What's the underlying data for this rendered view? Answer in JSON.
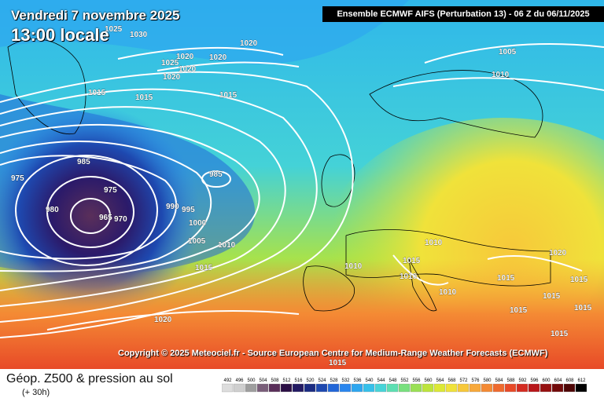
{
  "header": {
    "date_line": "Vendredi 7 novembre 2025",
    "time_line": "13:00 locale",
    "model_line": "Ensemble ECMWF AIFS  (Perturbation 13)  -  06 Z du 06/11/2025"
  },
  "copyright": "Copyright © 2025 Meteociel.fr - Source European Centre for Medium-Range Weather Forecasts (ECMWF)",
  "footer": {
    "title": "Géop. Z500 & pression au sol",
    "subtitle": "(+ 30h)"
  },
  "colorscale": {
    "labels": [
      "492",
      "496",
      "500",
      "504",
      "508",
      "512",
      "516",
      "520",
      "524",
      "528",
      "532",
      "536",
      "540",
      "544",
      "548",
      "552",
      "556",
      "560",
      "564",
      "568",
      "572",
      "576",
      "580",
      "584",
      "588",
      "592",
      "596",
      "600",
      "604",
      "608",
      "612"
    ],
    "colors": [
      "#dddddd",
      "#cfcfcf",
      "#9e9e9e",
      "#7a5f7a",
      "#5a2f5a",
      "#2b0f45",
      "#231a62",
      "#1b2c82",
      "#1e49b0",
      "#2266d8",
      "#2a86ee",
      "#2ea6ef",
      "#35c0ea",
      "#47d4d8",
      "#5ddfb2",
      "#78e07e",
      "#9ae055",
      "#bde43c",
      "#dce836",
      "#f0e23a",
      "#f7c83a",
      "#f7a83a",
      "#f48a34",
      "#ef6a2e",
      "#e84a28",
      "#d42c22",
      "#b8161a",
      "#961010",
      "#720a0a",
      "#4e0505",
      "#000000"
    ]
  },
  "isobar_labels": [
    "1030",
    "1025",
    "1020",
    "1020",
    "1025",
    "1020",
    "1020",
    "1020",
    "1005",
    "1015",
    "1015",
    "1015",
    "1010",
    "985",
    "975",
    "975",
    "980",
    "965",
    "970",
    "985",
    "990",
    "995",
    "1000",
    "1005",
    "1010",
    "1015",
    "1020",
    "1010",
    "1015",
    "1010",
    "1010",
    "1010",
    "1020",
    "1015",
    "1015",
    "1015",
    "1015",
    "1015",
    "1015",
    "1015"
  ]
}
